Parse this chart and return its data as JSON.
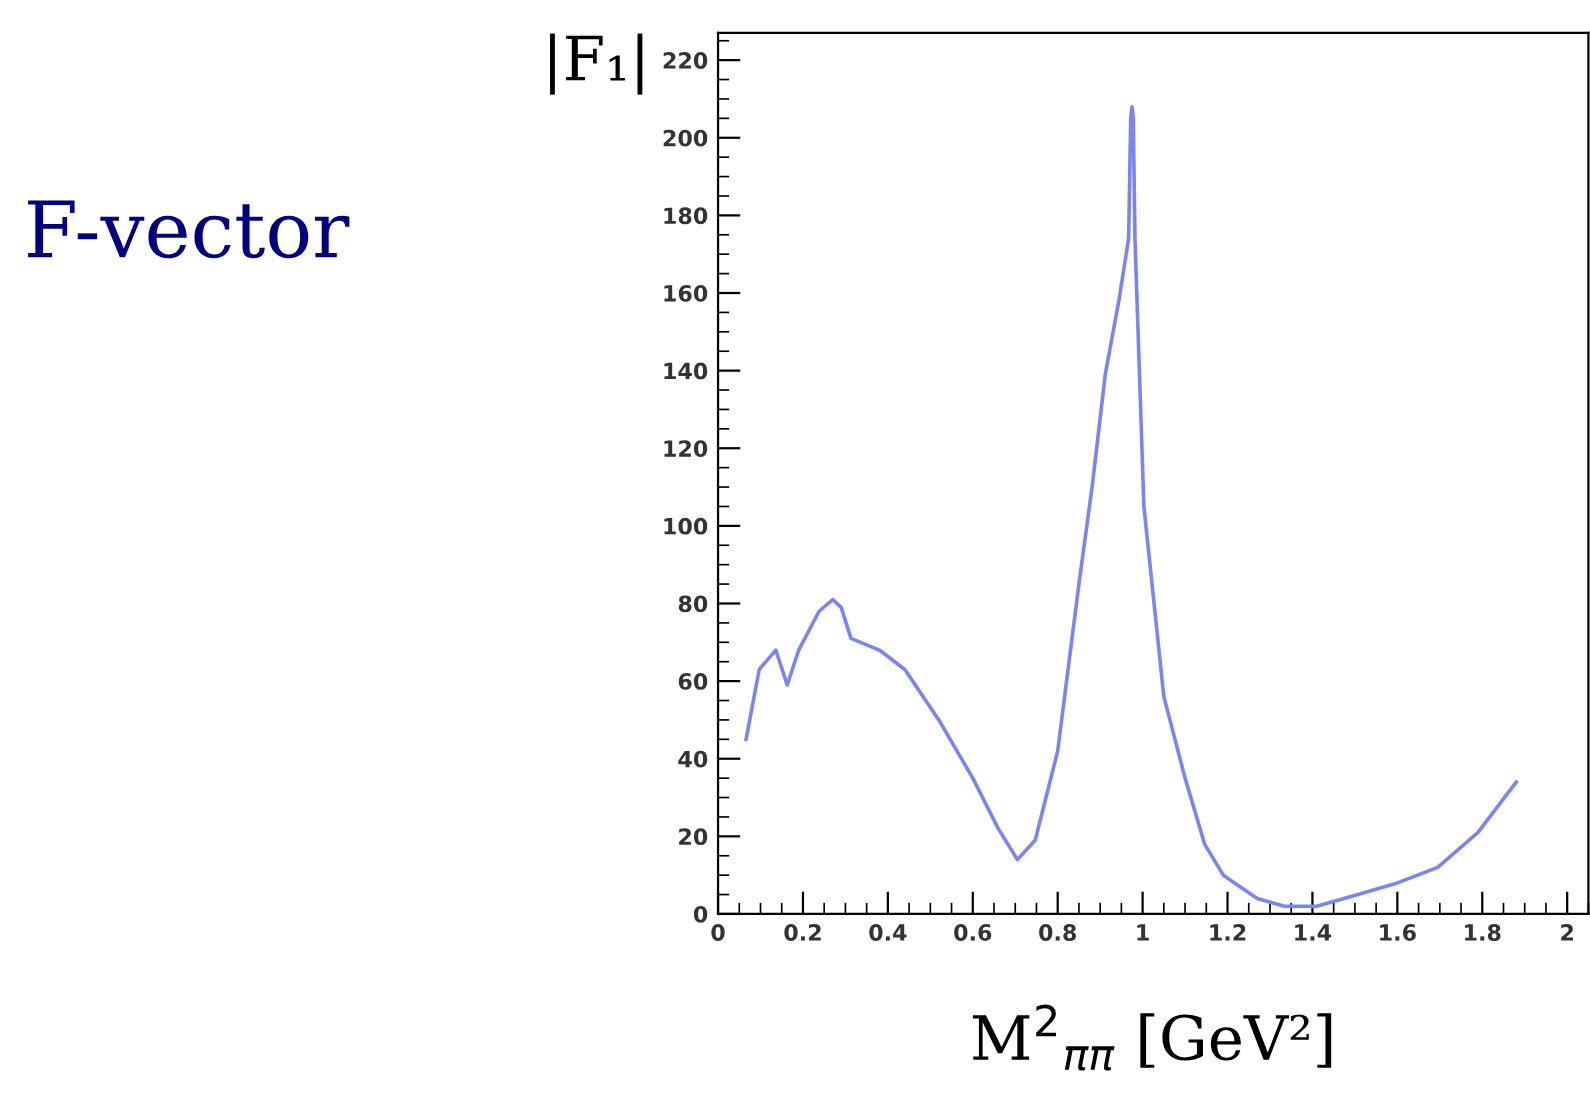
{
  "chart_data": {
    "type": "line",
    "title": "F-vector",
    "ylabel": "|F₁|",
    "xlabel": "M$^{2}$$_{ππ}$ [GeV²]",
    "xlim": [
      0,
      2.05
    ],
    "ylim": [
      0,
      227
    ],
    "xticks": [
      0,
      0.2,
      0.4,
      0.6,
      0.8,
      1,
      1.2,
      1.4,
      1.6,
      1.8,
      2
    ],
    "yticks": [
      0,
      20,
      40,
      60,
      80,
      100,
      120,
      140,
      160,
      180,
      200,
      220
    ],
    "grid": false,
    "legend": false,
    "series": [
      {
        "color": "#7b84f0",
        "line_style": "solid",
        "marker": "none",
        "x": [
          0.066,
          0.097,
          0.136,
          0.163,
          0.19,
          0.238,
          0.27,
          0.29,
          0.313,
          0.38,
          0.44,
          0.52,
          0.6,
          0.66,
          0.705,
          0.747,
          0.8,
          0.85,
          0.881,
          0.912,
          0.944,
          0.967,
          0.972,
          0.975,
          0.978,
          0.982,
          1.003,
          1.05,
          1.1,
          1.146,
          1.19,
          1.27,
          1.334,
          1.41,
          1.507,
          1.6,
          1.695,
          1.79,
          1.88
        ],
        "values": [
          45,
          63,
          68,
          59,
          68,
          78,
          81,
          79,
          71,
          68,
          63,
          50,
          35,
          22,
          14,
          19,
          42,
          85,
          110,
          139,
          158,
          174,
          205,
          208,
          205,
          174,
          105,
          56,
          35,
          18,
          10,
          4,
          2,
          2,
          5,
          8,
          12,
          21,
          34
        ]
      }
    ]
  }
}
